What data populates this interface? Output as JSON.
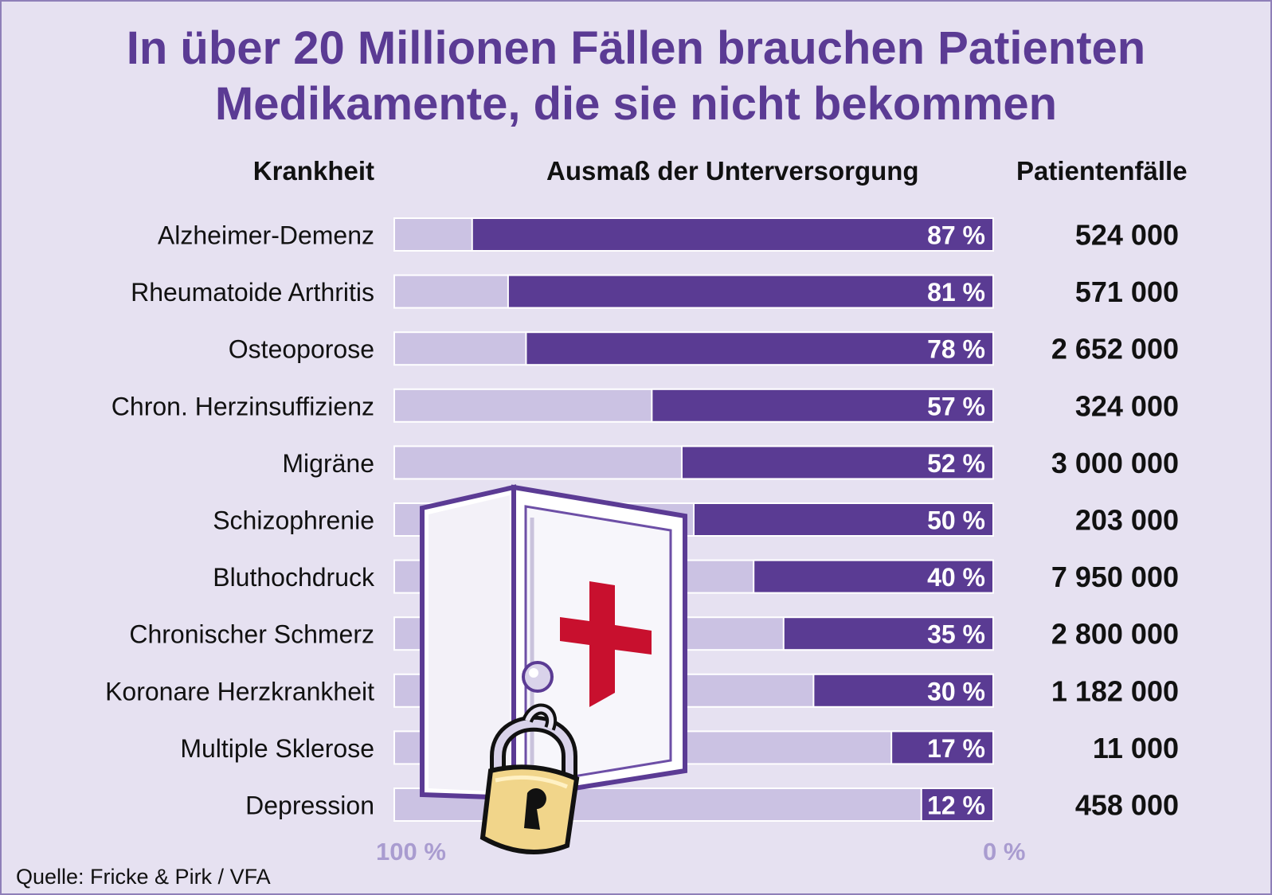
{
  "title": {
    "line1": "In über 20 Millionen Fällen brauchen Patienten",
    "line2": "Medikamente, die sie nicht bekommen"
  },
  "headers": {
    "disease": "Krankheit",
    "extent": "Ausmaß der Unterversorgung",
    "cases": "Patientenfälle"
  },
  "axis": {
    "left_label": "100 %",
    "right_label": "0 %"
  },
  "source": "Quelle: Fricke & Pirk / VFA",
  "colors": {
    "title": "#5b3b94",
    "bar_fill": "#5a3b93",
    "bar_track": "#cbc2e3",
    "background": "#e6e1f1",
    "axis_label": "#a99cd0",
    "cross": "#c8102e"
  },
  "icons": [
    "medicine-cabinet-icon",
    "padlock-icon",
    "red-cross-icon"
  ],
  "chart_data": {
    "type": "bar",
    "orientation": "horizontal",
    "xlim": [
      100,
      0
    ],
    "categories": [
      "Alzheimer-Demenz",
      "Rheumatoide Arthritis",
      "Osteoporose",
      "Chron. Herzinsuffizienz",
      "Migräne",
      "Schizophrenie",
      "Bluthochdruck",
      "Chronischer Schmerz",
      "Koronare Herzkrankheit",
      "Multiple Sklerose",
      "Depression"
    ],
    "values": [
      87,
      81,
      78,
      57,
      52,
      50,
      40,
      35,
      30,
      17,
      12
    ],
    "value_labels": [
      "87 %",
      "81 %",
      "78 %",
      "57 %",
      "52 %",
      "50 %",
      "40 %",
      "35 %",
      "30 %",
      "17 %",
      "12 %"
    ],
    "patient_cases": [
      "524 000",
      "571 000",
      "2 652 000",
      "324 000",
      "3 000 000",
      "203 000",
      "7 950 000",
      "2 800 000",
      "1 182 000",
      "11 000",
      "458 000"
    ]
  }
}
